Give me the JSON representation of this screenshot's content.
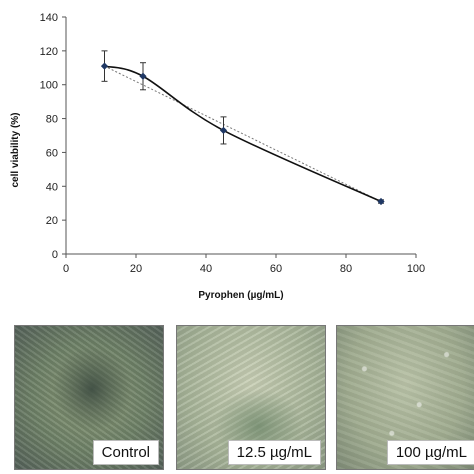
{
  "chart_data": {
    "type": "line",
    "title": "",
    "xlabel": "Pyrophen (µg/mL)",
    "ylabel": "cell viability (%)",
    "xlim": [
      0,
      100
    ],
    "ylim": [
      0,
      140
    ],
    "x_ticks": [
      0,
      20,
      40,
      60,
      80,
      100
    ],
    "y_ticks": [
      0,
      20,
      40,
      60,
      80,
      100,
      120,
      140
    ],
    "grid": false,
    "series": [
      {
        "x": [
          11,
          22,
          45,
          90
        ],
        "values": [
          111,
          105,
          73,
          31
        ],
        "error": [
          9,
          8,
          8,
          1
        ],
        "color": "#1f3864",
        "marker": "diamond"
      }
    ],
    "trendline": {
      "x": [
        11,
        90
      ],
      "values": [
        111,
        31
      ],
      "style": "dotted"
    }
  },
  "images": [
    {
      "label": "Control"
    },
    {
      "label": "12.5 µg/mL"
    },
    {
      "label": "100 µg/mL"
    }
  ]
}
